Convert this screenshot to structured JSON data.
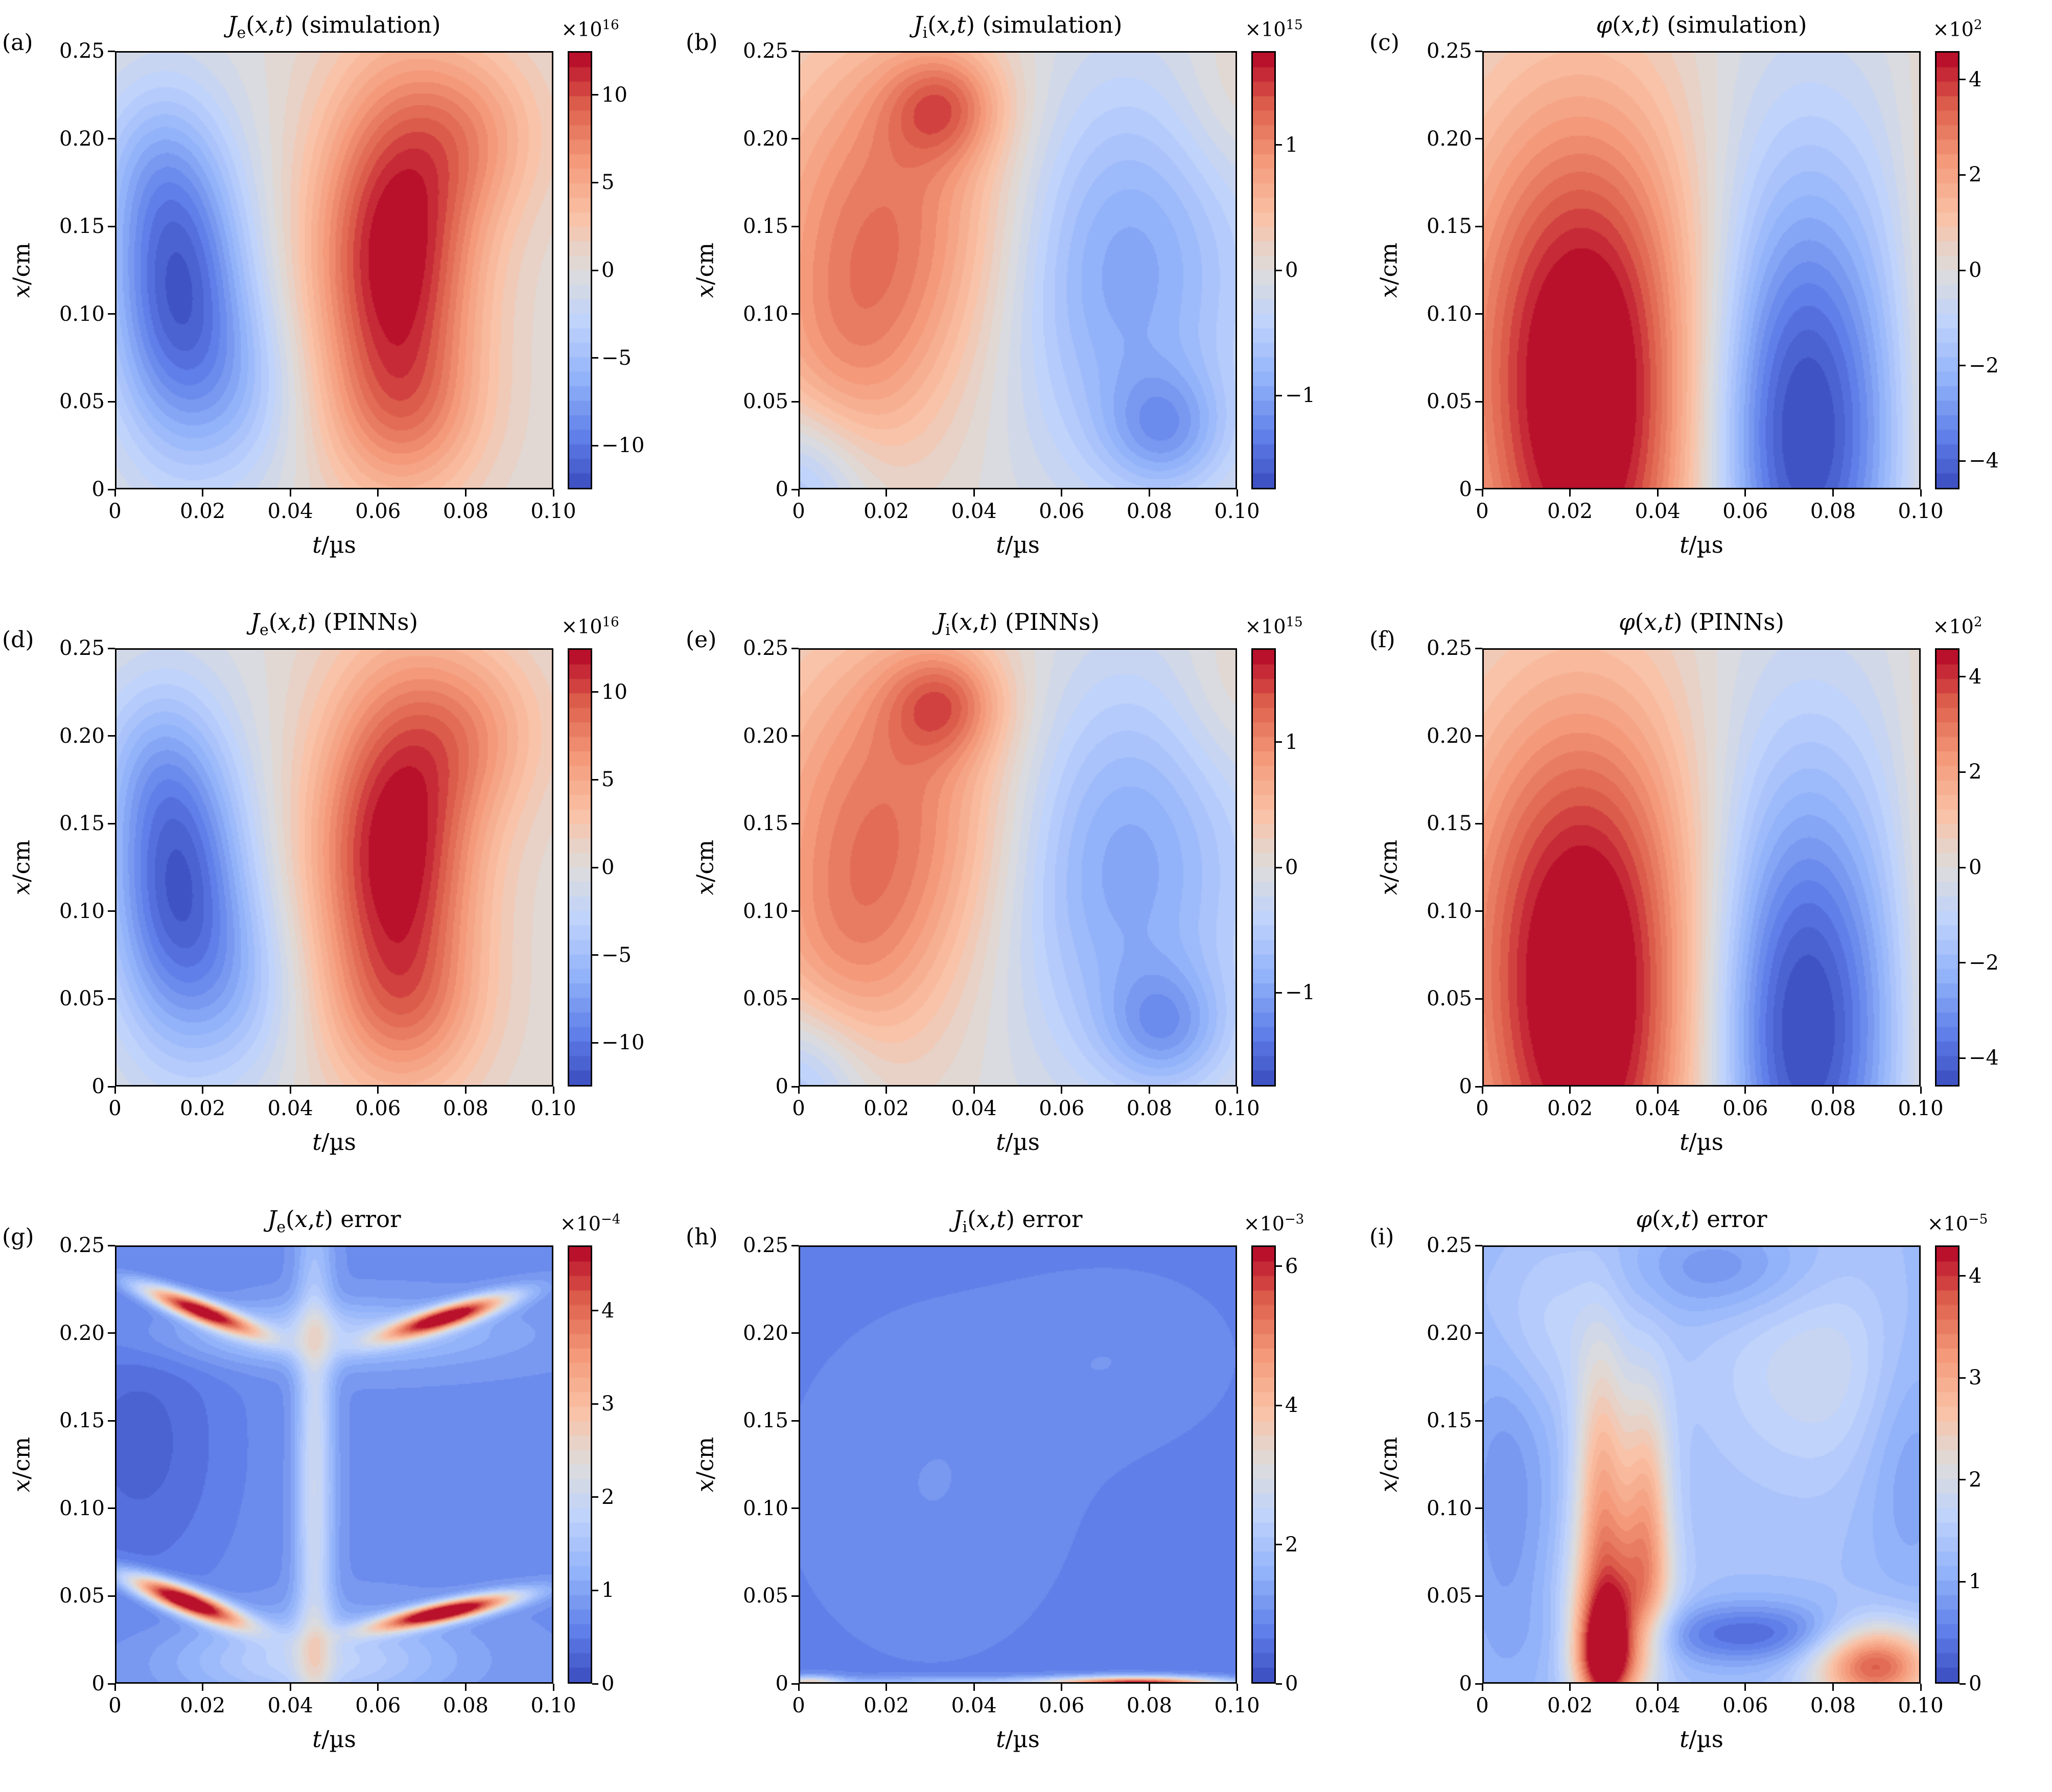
{
  "chart_data": {
    "type": "heatmap",
    "figure_kind": "3x3 contourf grid comparing simulation, PINNs prediction, and absolute error",
    "colormap": {
      "name": "coolwarm",
      "anchors": [
        [
          0,
          59,
          76,
          192
        ],
        [
          0.125,
          98,
          130,
          234
        ],
        [
          0.25,
          146,
          178,
          249
        ],
        [
          0.375,
          190,
          210,
          253
        ],
        [
          0.5,
          221,
          220,
          219
        ],
        [
          0.625,
          250,
          193,
          165
        ],
        [
          0.75,
          244,
          154,
          123
        ],
        [
          0.875,
          222,
          97,
          77
        ],
        [
          1,
          180,
          4,
          38
        ]
      ]
    },
    "contour_levels": 30,
    "axes": {
      "x": {
        "label_var": "t",
        "label_unit": "/µs",
        "range": [
          0,
          0.1
        ],
        "tick_values": [
          0,
          0.02,
          0.04,
          0.06,
          0.08,
          0.1
        ],
        "tick_labels": [
          "0",
          "0.02",
          "0.04",
          "0.06",
          "0.08",
          "0.10"
        ]
      },
      "y": {
        "label_var": "x",
        "label_unit": "/cm",
        "range": [
          0,
          0.25
        ],
        "tick_values": [
          0,
          0.05,
          0.1,
          0.15,
          0.2,
          0.25
        ],
        "tick_labels": [
          "0",
          "0.05",
          "0.10",
          "0.15",
          "0.20",
          "0.25"
        ]
      }
    },
    "panels": [
      {
        "label": "(a)",
        "title": {
          "sym": "J",
          "sub": "e",
          "args": "(x,t)",
          "suffix": "(simulation)"
        },
        "colorbar": {
          "exp_prefix": "×10",
          "exponent": "16",
          "vmin": -12.5,
          "vmax": 12.5,
          "tick_values": [
            -10,
            -5,
            0,
            5,
            10
          ],
          "tick_labels": [
            "−10",
            "−5",
            "0",
            "5",
            "10"
          ]
        },
        "field": {
          "base": 0,
          "components": [
            {
              "a": -11.5,
              "u": 0.14,
              "v": 0.45,
              "su": 0.115,
              "sv": 0.26
            },
            {
              "a": -3.0,
              "u": 0.3,
              "v": 0.22,
              "su": 0.1,
              "sv": 0.16
            },
            {
              "a": -2.5,
              "u": 0.07,
              "v": 0.75,
              "su": 0.1,
              "sv": 0.15
            },
            {
              "a": 12.8,
              "u": 0.64,
              "v": 0.52,
              "su": 0.135,
              "sv": 0.3
            },
            {
              "a": 4.5,
              "u": 0.82,
              "v": 0.82,
              "su": 0.13,
              "sv": 0.15
            },
            {
              "a": 3.0,
              "u": 0.68,
              "v": 0.16,
              "su": 0.13,
              "sv": 0.13
            }
          ]
        }
      },
      {
        "label": "(b)",
        "title": {
          "sym": "J",
          "sub": "i",
          "args": "(x,t)",
          "suffix": "(simulation)"
        },
        "colorbar": {
          "exp_prefix": "×10",
          "exponent": "15",
          "vmin": -1.75,
          "vmax": 1.75,
          "tick_values": [
            -1,
            0,
            1
          ],
          "tick_labels": [
            "−1",
            "0",
            "1"
          ]
        },
        "field": {
          "base": 0,
          "components": [
            {
              "a": 1.15,
              "u": 0.22,
              "v": 0.62,
              "su": 0.22,
              "sv": 0.3
            },
            {
              "a": 0.85,
              "u": 0.33,
              "v": 0.88,
              "su": 0.095,
              "sv": 0.09
            },
            {
              "a": 0.45,
              "u": 0.1,
              "v": 0.28,
              "su": 0.14,
              "sv": 0.2
            },
            {
              "a": -1.05,
              "u": 0.73,
              "v": 0.5,
              "su": 0.22,
              "sv": 0.32
            },
            {
              "a": -0.75,
              "u": 0.84,
              "v": 0.13,
              "su": 0.1,
              "sv": 0.1
            },
            {
              "a": -0.7,
              "u": 0.0,
              "v": 0.0,
              "su": 0.11,
              "sv": 0.13
            },
            {
              "a": 0.25,
              "u": 1.0,
              "v": 0.9,
              "su": 0.1,
              "sv": 0.15
            }
          ]
        }
      },
      {
        "label": "(c)",
        "title": {
          "sym": "φ",
          "sub": "",
          "args": "(x,t)",
          "suffix": "(simulation)"
        },
        "colorbar": {
          "exp_prefix": "×10",
          "exponent": "2",
          "vmin": -4.6,
          "vmax": 4.6,
          "tick_values": [
            -4,
            -2,
            0,
            2,
            4
          ],
          "tick_labels": [
            "−4",
            "−2",
            "0",
            "2",
            "4"
          ]
        },
        "field": {
          "base": 0,
          "components": [
            {
              "a": 4.4,
              "u": 0.24,
              "v": 0.08,
              "su": 0.2,
              "sv": 0.42
            },
            {
              "a": 2.0,
              "u": 0.22,
              "v": 0.55,
              "su": 0.22,
              "sv": 0.35
            },
            {
              "a": -4.3,
              "u": 0.73,
              "v": 0.06,
              "su": 0.16,
              "sv": 0.35
            },
            {
              "a": -1.5,
              "u": 0.72,
              "v": 0.55,
              "su": 0.18,
              "sv": 0.35
            },
            {
              "a": 1.2,
              "u": 1.05,
              "v": 0.3,
              "su": 0.07,
              "sv": 0.5
            }
          ]
        }
      },
      {
        "label": "(d)",
        "title": {
          "sym": "J",
          "sub": "e",
          "args": "(x,t)",
          "suffix": "(PINNs)"
        },
        "colorbar": {
          "exp_prefix": "×10",
          "exponent": "16",
          "vmin": -12.5,
          "vmax": 12.5,
          "tick_values": [
            -10,
            -5,
            0,
            5,
            10
          ],
          "tick_labels": [
            "−10",
            "−5",
            "0",
            "5",
            "10"
          ]
        },
        "field": {
          "base": 0,
          "components": [
            {
              "a": -11.5,
              "u": 0.14,
              "v": 0.45,
              "su": 0.115,
              "sv": 0.26
            },
            {
              "a": -3.0,
              "u": 0.3,
              "v": 0.22,
              "su": 0.1,
              "sv": 0.16
            },
            {
              "a": -2.5,
              "u": 0.07,
              "v": 0.75,
              "su": 0.1,
              "sv": 0.15
            },
            {
              "a": 12.8,
              "u": 0.64,
              "v": 0.52,
              "su": 0.135,
              "sv": 0.3
            },
            {
              "a": 4.5,
              "u": 0.82,
              "v": 0.82,
              "su": 0.13,
              "sv": 0.15
            },
            {
              "a": 3.0,
              "u": 0.68,
              "v": 0.16,
              "su": 0.13,
              "sv": 0.13
            }
          ]
        }
      },
      {
        "label": "(e)",
        "title": {
          "sym": "J",
          "sub": "i",
          "args": "(x,t)",
          "suffix": "(PINNs)"
        },
        "colorbar": {
          "exp_prefix": "×10",
          "exponent": "15",
          "vmin": -1.75,
          "vmax": 1.75,
          "tick_values": [
            -1,
            0,
            1
          ],
          "tick_labels": [
            "−1",
            "0",
            "1"
          ]
        },
        "field": {
          "base": 0,
          "components": [
            {
              "a": 1.15,
              "u": 0.22,
              "v": 0.62,
              "su": 0.22,
              "sv": 0.3
            },
            {
              "a": 0.85,
              "u": 0.33,
              "v": 0.88,
              "su": 0.095,
              "sv": 0.09
            },
            {
              "a": 0.45,
              "u": 0.1,
              "v": 0.28,
              "su": 0.14,
              "sv": 0.2
            },
            {
              "a": -1.05,
              "u": 0.73,
              "v": 0.5,
              "su": 0.22,
              "sv": 0.32
            },
            {
              "a": -0.75,
              "u": 0.84,
              "v": 0.13,
              "su": 0.1,
              "sv": 0.1
            },
            {
              "a": -0.7,
              "u": 0.0,
              "v": 0.0,
              "su": 0.11,
              "sv": 0.13
            },
            {
              "a": 0.25,
              "u": 1.0,
              "v": 0.9,
              "su": 0.1,
              "sv": 0.15
            }
          ]
        }
      },
      {
        "label": "(f)",
        "title": {
          "sym": "φ",
          "sub": "",
          "args": "(x,t)",
          "suffix": "(PINNs)"
        },
        "colorbar": {
          "exp_prefix": "×10",
          "exponent": "2",
          "vmin": -4.6,
          "vmax": 4.6,
          "tick_values": [
            -4,
            -2,
            0,
            2,
            4
          ],
          "tick_labels": [
            "−4",
            "−2",
            "0",
            "2",
            "4"
          ]
        },
        "field": {
          "base": 0,
          "components": [
            {
              "a": 4.4,
              "u": 0.24,
              "v": 0.08,
              "su": 0.2,
              "sv": 0.42
            },
            {
              "a": 2.0,
              "u": 0.22,
              "v": 0.55,
              "su": 0.22,
              "sv": 0.35
            },
            {
              "a": -4.3,
              "u": 0.73,
              "v": 0.06,
              "su": 0.16,
              "sv": 0.35
            },
            {
              "a": -1.5,
              "u": 0.72,
              "v": 0.55,
              "su": 0.18,
              "sv": 0.35
            },
            {
              "a": 1.2,
              "u": 1.05,
              "v": 0.3,
              "su": 0.07,
              "sv": 0.5
            }
          ]
        }
      },
      {
        "label": "(g)",
        "title": {
          "sym": "J",
          "sub": "e",
          "args": "(x,t)",
          "suffix": "error"
        },
        "colorbar": {
          "exp_prefix": "×10",
          "exponent": "−4",
          "vmin": 0,
          "vmax": 4.7,
          "tick_values": [
            0,
            1,
            2,
            3,
            4
          ],
          "tick_labels": [
            "0",
            "1",
            "2",
            "3",
            "4"
          ]
        },
        "field": {
          "base": 0.75,
          "components": [
            {
              "a": 4.2,
              "u": 0.19,
              "v": 0.855,
              "su": 0.095,
              "sv": 0.018,
              "th": -21
            },
            {
              "a": 4.2,
              "u": 0.76,
              "v": 0.84,
              "su": 0.1,
              "sv": 0.018,
              "th": 17
            },
            {
              "a": 4.8,
              "u": 0.16,
              "v": 0.185,
              "su": 0.095,
              "sv": 0.02,
              "th": -21
            },
            {
              "a": 4.8,
              "u": 0.755,
              "v": 0.16,
              "su": 0.11,
              "sv": 0.016,
              "th": 12
            },
            {
              "a": 1.3,
              "u": 0.455,
              "v": 0.45,
              "su": 0.03,
              "sv": 0.45
            },
            {
              "a": 1.1,
              "u": 0.45,
              "v": 0.05,
              "su": 0.22,
              "sv": 0.07
            },
            {
              "a": 0.9,
              "u": 0.47,
              "v": 0.8,
              "su": 0.28,
              "sv": 0.05
            },
            {
              "a": -0.5,
              "u": 0.05,
              "v": 0.55,
              "su": 0.15,
              "sv": 0.25
            }
          ]
        }
      },
      {
        "label": "(h)",
        "title": {
          "sym": "J",
          "sub": "i",
          "args": "(x,t)",
          "suffix": "error"
        },
        "colorbar": {
          "exp_prefix": "×10",
          "exponent": "−3",
          "vmin": 0,
          "vmax": 6.3,
          "tick_values": [
            0,
            2,
            4,
            6
          ],
          "tick_labels": [
            "0",
            "2",
            "4",
            "6"
          ]
        },
        "field": {
          "base": 0.7,
          "components": [
            {
              "a": 6.2,
              "u": 0.78,
              "v": -0.01,
              "su": 0.13,
              "sv": 0.013
            },
            {
              "a": 2.5,
              "u": 0.02,
              "v": -0.005,
              "su": 0.05,
              "sv": 0.012
            },
            {
              "a": 1.0,
              "u": 0.45,
              "v": 0.0,
              "su": 0.35,
              "sv": 0.008
            },
            {
              "a": 0.35,
              "u": 0.3,
              "v": 0.45,
              "su": 0.25,
              "sv": 0.3
            },
            {
              "a": 0.3,
              "u": 0.75,
              "v": 0.75,
              "su": 0.2,
              "sv": 0.15
            }
          ]
        }
      },
      {
        "label": "(i)",
        "title": {
          "sym": "φ",
          "sub": "",
          "args": "(x,t)",
          "suffix": "error"
        },
        "colorbar": {
          "exp_prefix": "×10",
          "exponent": "−5",
          "vmin": 0,
          "vmax": 4.3,
          "tick_values": [
            0,
            1,
            2,
            3,
            4
          ],
          "tick_labels": [
            "0",
            "1",
            "2",
            "3",
            "4"
          ]
        },
        "field": {
          "base": 1.3,
          "components": [
            {
              "a": 1.7,
              "u": 0.27,
              "v": 0.4,
              "su": 0.045,
              "sv": 0.26
            },
            {
              "a": 1.5,
              "u": 0.375,
              "v": 0.38,
              "su": 0.04,
              "sv": 0.22
            },
            {
              "a": 3.0,
              "u": 0.28,
              "v": 0.06,
              "su": 0.05,
              "sv": 0.09
            },
            {
              "a": 1.1,
              "u": 0.32,
              "v": 0.2,
              "su": 0.08,
              "sv": 0.12
            },
            {
              "a": 2.6,
              "u": 0.9,
              "v": 0.04,
              "su": 0.1,
              "sv": 0.07
            },
            {
              "a": -1.0,
              "u": 0.62,
              "v": 0.11,
              "su": 0.2,
              "sv": 0.05
            },
            {
              "a": -0.55,
              "u": 0.05,
              "v": 0.45,
              "su": 0.08,
              "sv": 0.35
            },
            {
              "a": 0.55,
              "u": 0.78,
              "v": 0.72,
              "su": 0.18,
              "sv": 0.18
            },
            {
              "a": 0.45,
              "u": 0.12,
              "v": 0.82,
              "su": 0.1,
              "sv": 0.14
            },
            {
              "a": -0.6,
              "u": 0.55,
              "v": 0.95,
              "su": 0.15,
              "sv": 0.08
            },
            {
              "a": -0.5,
              "u": 0.98,
              "v": 0.55,
              "su": 0.08,
              "sv": 0.25
            }
          ]
        }
      }
    ]
  }
}
